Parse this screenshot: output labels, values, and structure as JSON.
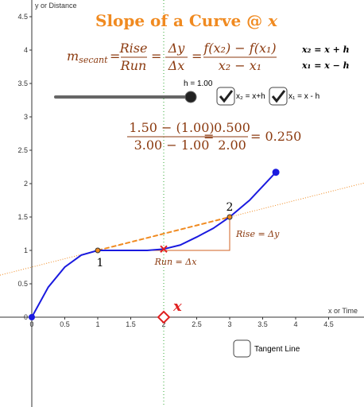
{
  "title": "Slope of a Curve @ ",
  "title_var": "x",
  "formula": {
    "m": "m",
    "sub": "secant",
    "eq": "=",
    "rise": "Rise",
    "run": "Run",
    "dy": "Δy",
    "dx": "Δx",
    "num": "f(x₂) − f(x₁)",
    "den": "x₂ − x₁"
  },
  "definitions": [
    "x₂ = x + h",
    "x₁ = x − h"
  ],
  "slider": {
    "label": "h = 1.00"
  },
  "checkboxes": [
    {
      "label": "x₂ = x+h",
      "checked": true
    },
    {
      "label": "x₁ = x - h",
      "checked": true
    },
    {
      "label": "Tangent Line",
      "checked": false
    }
  ],
  "computation": {
    "num1": "1.50 − (1.00)",
    "den1": "3.00 − 1.00",
    "eq": "=",
    "num2": "0.500",
    "den2": "2.00",
    "result": "= 0.250"
  },
  "axes": {
    "x_label": "x or Time",
    "y_label": "y or Distance",
    "xticks": [
      0,
      0.5,
      1,
      1.5,
      2,
      2.5,
      3,
      3.5,
      4,
      4.5
    ],
    "yticks": [
      0,
      0.5,
      1,
      1.5,
      2,
      2.5,
      3,
      3.5,
      4,
      4.5
    ]
  },
  "curve": {
    "x": [
      0,
      0.25,
      0.5,
      0.75,
      1,
      1.25,
      1.5,
      1.75,
      2,
      2.25,
      2.5,
      2.75,
      3,
      3.3,
      3.7
    ],
    "y": [
      0,
      0.45,
      0.75,
      0.93,
      1,
      1.0,
      1.0,
      1.0,
      1.02,
      1.08,
      1.2,
      1.33,
      1.5,
      1.75,
      2.17
    ]
  },
  "point1": {
    "x": 1,
    "y": 1,
    "label": "1"
  },
  "point2": {
    "x": 3,
    "y": 1.5,
    "label": "2"
  },
  "center": {
    "x": 2,
    "y": 1.02
  },
  "rise_label": "Rise = Δy",
  "run_label": "Run = Δx"
}
